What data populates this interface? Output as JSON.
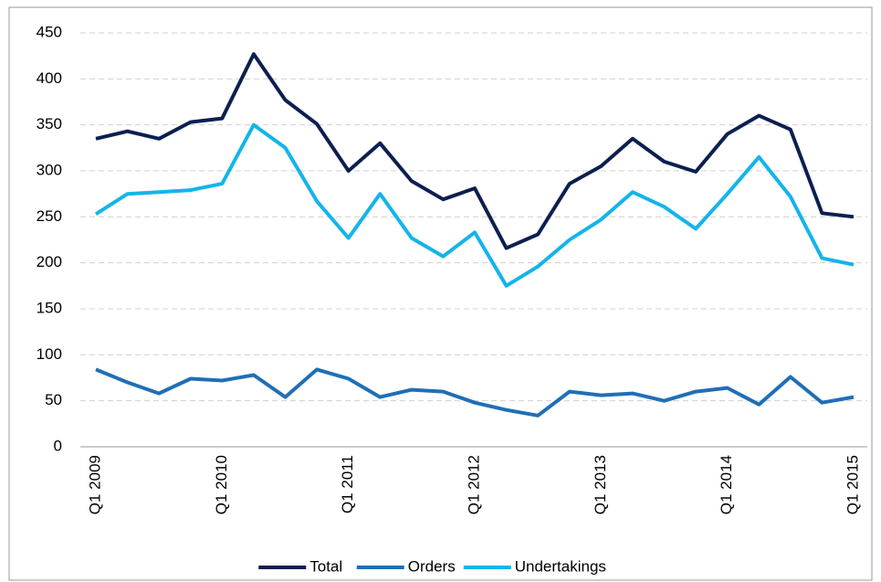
{
  "chart_data": {
    "type": "line",
    "categories": [
      "Q1 2009",
      null,
      null,
      null,
      "Q1 2010",
      null,
      null,
      null,
      "Q1 2011",
      null,
      null,
      null,
      "Q1 2012",
      null,
      null,
      null,
      "Q1 2013",
      null,
      null,
      null,
      "Q1 2014",
      null,
      null,
      null,
      "Q1 2015"
    ],
    "series": [
      {
        "name": "Total",
        "color": "#0c1f50",
        "values": [
          335,
          343,
          335,
          353,
          357,
          427,
          377,
          351,
          300,
          330,
          289,
          269,
          281,
          216,
          231,
          286,
          305,
          335,
          310,
          299,
          340,
          360,
          345,
          254,
          250
        ]
      },
      {
        "name": "Orders",
        "color": "#1f6fb6",
        "values": [
          84,
          70,
          58,
          74,
          72,
          78,
          54,
          84,
          74,
          54,
          62,
          60,
          48,
          40,
          34,
          60,
          56,
          58,
          50,
          60,
          64,
          46,
          76,
          48,
          54
        ]
      },
      {
        "name": "Undertakings",
        "color": "#14b4ea",
        "values": [
          253,
          275,
          277,
          279,
          286,
          350,
          325,
          267,
          227,
          275,
          227,
          207,
          233,
          175,
          196,
          225,
          247,
          277,
          261,
          237,
          275,
          315,
          272,
          205,
          198
        ]
      }
    ],
    "ylim": [
      0,
      450
    ],
    "yticks": [
      0,
      50,
      100,
      150,
      200,
      250,
      300,
      350,
      400,
      450
    ],
    "grid": true,
    "legend": "bottom"
  }
}
